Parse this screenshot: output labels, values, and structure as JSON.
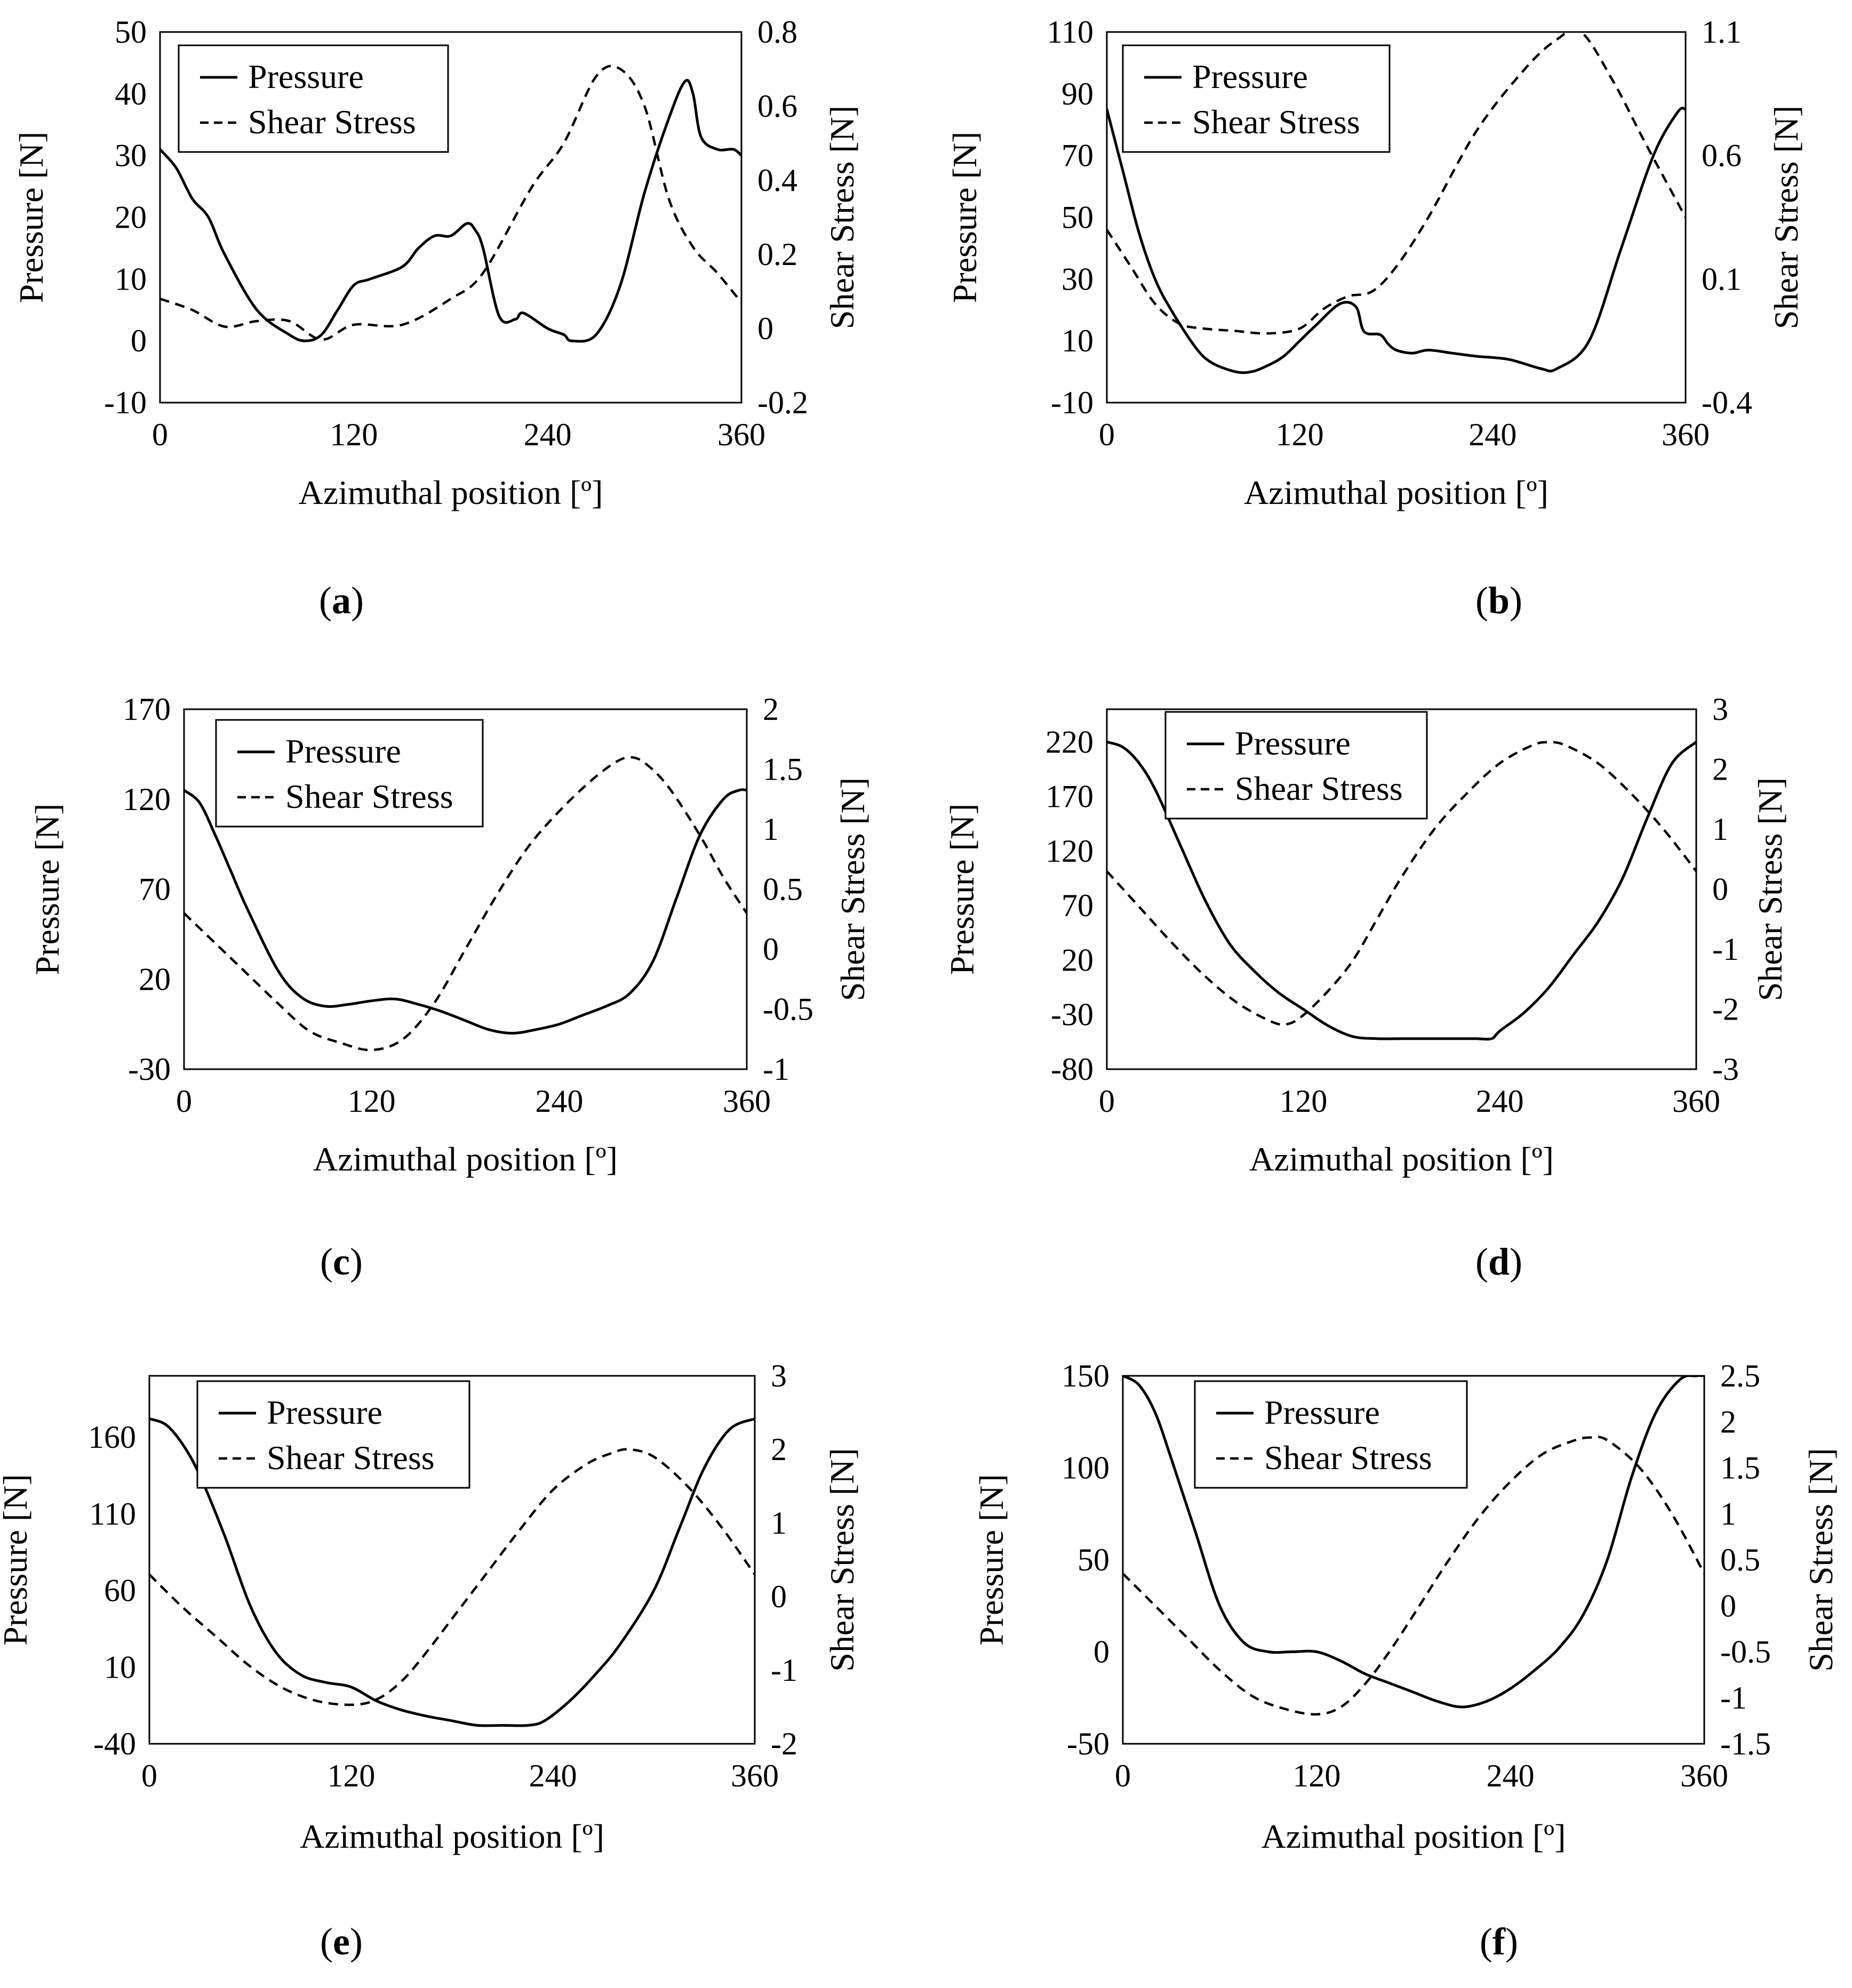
{
  "figure": {
    "legend_labels": {
      "pressure": "Pressure",
      "shear": "Shear Stress"
    },
    "series_colors": {
      "pressure": "#000000",
      "shear": "#000000"
    }
  },
  "chart_data": [
    {
      "type": "line",
      "caption_letter": "a",
      "xlabel": "Azimuthal position [º]",
      "ylabel": "Pressure [N]",
      "y2label": "Shear Stress [N]",
      "xlim": [
        0,
        360
      ],
      "xticks": [
        0,
        120,
        240,
        360
      ],
      "ylim": [
        -10,
        50
      ],
      "yticks": [
        -10,
        0,
        10,
        20,
        30,
        40,
        50
      ],
      "y2lim": [
        -0.2,
        0.8
      ],
      "y2ticks": [
        -0.2,
        0,
        0.2,
        0.4,
        0.6,
        0.8
      ],
      "legend": "top-left",
      "series": [
        {
          "name": "Pressure",
          "axis": "left",
          "style": "solid",
          "x": [
            0,
            10,
            20,
            30,
            40,
            60,
            80,
            90,
            100,
            110,
            120,
            130,
            150,
            160,
            170,
            180,
            190,
            195,
            200,
            210,
            220,
            225,
            240,
            250,
            255,
            270,
            285,
            300,
            315,
            325,
            330,
            335,
            345,
            355,
            360
          ],
          "y": [
            31,
            28,
            23,
            20,
            14,
            5,
            1,
            0,
            1,
            5,
            9,
            10,
            12,
            15,
            17,
            17,
            19,
            18,
            15,
            4,
            3.5,
            4.5,
            2,
            1,
            0,
            1,
            9,
            24,
            36,
            42,
            40,
            33,
            31,
            31,
            30
          ]
        },
        {
          "name": "Shear Stress",
          "axis": "right",
          "style": "dashed",
          "x": [
            0,
            20,
            40,
            60,
            80,
            100,
            120,
            150,
            180,
            200,
            230,
            250,
            270,
            285,
            300,
            315,
            330,
            345,
            360
          ],
          "y": [
            0.08,
            0.05,
            0.005,
            0.02,
            0.02,
            -0.03,
            0.01,
            0.01,
            0.08,
            0.15,
            0.38,
            0.5,
            0.68,
            0.7,
            0.6,
            0.35,
            0.22,
            0.15,
            0.07
          ]
        }
      ]
    },
    {
      "type": "line",
      "caption_letter": "b",
      "xlabel": "Azimuthal position [º]",
      "ylabel": "Pressure [N]",
      "y2label": "Shear Stress [N]",
      "xlim": [
        0,
        360
      ],
      "xticks": [
        0,
        120,
        240,
        360
      ],
      "ylim": [
        -10,
        110
      ],
      "yticks": [
        -10,
        10,
        30,
        50,
        70,
        90,
        110
      ],
      "y2lim": [
        -0.4,
        1.1
      ],
      "y2ticks": [
        -0.4,
        0.1,
        0.6,
        1.1
      ],
      "legend": "top-left",
      "series": [
        {
          "name": "Pressure",
          "axis": "left",
          "style": "solid",
          "x": [
            0,
            10,
            20,
            30,
            40,
            55,
            65,
            80,
            90,
            100,
            110,
            120,
            130,
            145,
            155,
            160,
            170,
            175,
            180,
            190,
            200,
            215,
            230,
            250,
            270,
            280,
            300,
            320,
            340,
            355,
            360
          ],
          "y": [
            85,
            65,
            45,
            30,
            20,
            8,
            3,
            0,
            0,
            2,
            5,
            10,
            15,
            22,
            21,
            13,
            12,
            9,
            7,
            6,
            7,
            6,
            5,
            4,
            1,
            1,
            10,
            40,
            70,
            84,
            85
          ]
        },
        {
          "name": "Shear Stress",
          "axis": "right",
          "style": "dashed",
          "x": [
            0,
            15,
            30,
            45,
            60,
            80,
            100,
            120,
            135,
            150,
            165,
            180,
            200,
            230,
            260,
            280,
            295,
            315,
            335,
            360
          ],
          "y": [
            0.3,
            0.15,
            0.0,
            -0.08,
            -0.1,
            -0.11,
            -0.12,
            -0.1,
            -0.02,
            0.03,
            0.05,
            0.15,
            0.35,
            0.7,
            0.95,
            1.07,
            1.1,
            0.9,
            0.65,
            0.35
          ]
        }
      ]
    },
    {
      "type": "line",
      "caption_letter": "c",
      "xlabel": "Azimuthal position [º]",
      "ylabel": "Pressure [N]",
      "y2label": "Shear Stress [N]",
      "xlim": [
        0,
        360
      ],
      "xticks": [
        0,
        120,
        240,
        360
      ],
      "ylim": [
        -30,
        170
      ],
      "yticks": [
        -30,
        20,
        70,
        120,
        170
      ],
      "y2lim": [
        -1,
        2
      ],
      "y2ticks": [
        -1,
        -0.5,
        0,
        0.5,
        1,
        1.5,
        2
      ],
      "legend": "top-left",
      "series": [
        {
          "name": "Pressure",
          "axis": "left",
          "style": "solid",
          "x": [
            0,
            10,
            20,
            30,
            40,
            60,
            75,
            90,
            105,
            120,
            135,
            150,
            165,
            180,
            195,
            210,
            225,
            240,
            255,
            270,
            285,
            300,
            315,
            330,
            345,
            355,
            360
          ],
          "y": [
            125,
            118,
            100,
            80,
            60,
            25,
            10,
            5,
            6,
            8,
            9,
            6,
            2,
            -3,
            -8,
            -10,
            -8,
            -5,
            0,
            5,
            12,
            30,
            65,
            100,
            120,
            125,
            125
          ]
        },
        {
          "name": "Shear Stress",
          "axis": "right",
          "style": "dashed",
          "x": [
            0,
            20,
            40,
            60,
            80,
            100,
            120,
            140,
            160,
            180,
            200,
            220,
            240,
            260,
            275,
            285,
            295,
            310,
            330,
            345,
            360
          ],
          "y": [
            0.3,
            0.05,
            -0.2,
            -0.45,
            -0.68,
            -0.78,
            -0.84,
            -0.75,
            -0.45,
            0,
            0.45,
            0.85,
            1.15,
            1.4,
            1.55,
            1.6,
            1.55,
            1.35,
            0.95,
            0.6,
            0.3
          ]
        }
      ]
    },
    {
      "type": "line",
      "caption_letter": "d",
      "xlabel": "Azimuthal position [º]",
      "ylabel": "Pressure [N]",
      "y2label": "Shear Stress [N]",
      "xlim": [
        0,
        360
      ],
      "xticks": [
        0,
        120,
        240,
        360
      ],
      "ylim": [
        -80,
        250
      ],
      "yticks": [
        -80,
        -30,
        20,
        70,
        120,
        170,
        220
      ],
      "y2lim": [
        -3,
        3
      ],
      "y2ticks": [
        -3,
        -2,
        -1,
        0,
        1,
        2,
        3
      ],
      "legend": "top-left",
      "series": [
        {
          "name": "Pressure",
          "axis": "left",
          "style": "solid",
          "x": [
            0,
            10,
            20,
            30,
            45,
            60,
            75,
            90,
            105,
            120,
            135,
            150,
            165,
            180,
            195,
            210,
            225,
            235,
            240,
            255,
            270,
            285,
            300,
            315,
            330,
            345,
            360
          ],
          "y": [
            220,
            215,
            200,
            175,
            125,
            75,
            35,
            10,
            -10,
            -25,
            -40,
            -50,
            -52,
            -52,
            -52,
            -52,
            -52,
            -52,
            -45,
            -28,
            -5,
            25,
            55,
            95,
            150,
            200,
            220
          ]
        },
        {
          "name": "Shear Stress",
          "axis": "right",
          "style": "dashed",
          "x": [
            0,
            20,
            40,
            60,
            80,
            100,
            110,
            120,
            135,
            150,
            165,
            180,
            200,
            220,
            240,
            260,
            270,
            280,
            300,
            320,
            340,
            360
          ],
          "y": [
            0.3,
            -0.3,
            -0.9,
            -1.45,
            -1.9,
            -2.2,
            -2.25,
            -2.1,
            -1.7,
            -1.2,
            -0.5,
            0.2,
            1.0,
            1.6,
            2.1,
            2.4,
            2.45,
            2.4,
            2.1,
            1.6,
            1.0,
            0.3
          ]
        }
      ]
    },
    {
      "type": "line",
      "caption_letter": "e",
      "xlabel": "Azimuthal position [º]",
      "ylabel": "Pressure [N]",
      "y2label": "Shear Stress [N]",
      "xlim": [
        0,
        360
      ],
      "xticks": [
        0,
        120,
        240,
        360
      ],
      "ylim": [
        -40,
        200
      ],
      "yticks": [
        -40,
        10,
        60,
        110,
        160
      ],
      "y2lim": [
        -2,
        3
      ],
      "y2ticks": [
        -2,
        -1,
        0,
        1,
        2,
        3
      ],
      "legend": "top-left",
      "series": [
        {
          "name": "Pressure",
          "axis": "left",
          "style": "solid",
          "x": [
            0,
            10,
            20,
            30,
            45,
            60,
            75,
            90,
            105,
            120,
            135,
            150,
            165,
            180,
            195,
            210,
            225,
            235,
            250,
            265,
            280,
            300,
            315,
            330,
            345,
            360
          ],
          "y": [
            172,
            168,
            155,
            135,
            95,
            50,
            20,
            5,
            0,
            -3,
            -12,
            -18,
            -22,
            -25,
            -28,
            -28,
            -28,
            -25,
            -12,
            5,
            25,
            60,
            100,
            140,
            165,
            172
          ]
        },
        {
          "name": "Shear Stress",
          "axis": "right",
          "style": "dashed",
          "x": [
            0,
            20,
            40,
            60,
            80,
            100,
            120,
            135,
            150,
            165,
            180,
            200,
            220,
            240,
            260,
            275,
            285,
            300,
            320,
            340,
            360
          ],
          "y": [
            0.3,
            -0.15,
            -0.55,
            -0.95,
            -1.25,
            -1.42,
            -1.47,
            -1.4,
            -1.15,
            -0.75,
            -0.3,
            0.3,
            0.9,
            1.45,
            1.8,
            1.95,
            2.0,
            1.9,
            1.5,
            0.95,
            0.3
          ]
        }
      ]
    },
    {
      "type": "line",
      "caption_letter": "f",
      "xlabel": "Azimuthal position [º]",
      "ylabel": "Pressure [N]",
      "y2label": "Shear Stress [N]",
      "xlim": [
        0,
        360
      ],
      "xticks": [
        0,
        120,
        240,
        360
      ],
      "ylim": [
        -50,
        150
      ],
      "yticks": [
        -50,
        0,
        50,
        100,
        150
      ],
      "y2lim": [
        -1.5,
        2.5
      ],
      "y2ticks": [
        -1.5,
        -1,
        -0.5,
        0,
        0.5,
        1,
        1.5,
        2,
        2.5
      ],
      "legend": "top-left",
      "series": [
        {
          "name": "Pressure",
          "axis": "left",
          "style": "solid",
          "x": [
            0,
            10,
            20,
            30,
            45,
            60,
            75,
            90,
            105,
            120,
            135,
            150,
            165,
            180,
            195,
            210,
            225,
            240,
            255,
            270,
            285,
            300,
            315,
            330,
            345,
            355,
            360
          ],
          "y": [
            150,
            145,
            130,
            105,
            65,
            25,
            5,
            0,
            0,
            0,
            -5,
            -12,
            -17,
            -22,
            -27,
            -30,
            -27,
            -20,
            -10,
            2,
            20,
            50,
            95,
            130,
            148,
            150,
            150
          ]
        },
        {
          "name": "Shear Stress",
          "axis": "right",
          "style": "dashed",
          "x": [
            0,
            20,
            40,
            60,
            80,
            100,
            120,
            135,
            150,
            165,
            180,
            200,
            220,
            240,
            260,
            280,
            290,
            300,
            320,
            340,
            360
          ],
          "y": [
            0.35,
            0.0,
            -0.35,
            -0.7,
            -0.98,
            -1.12,
            -1.18,
            -1.1,
            -0.85,
            -0.5,
            -0.1,
            0.45,
            0.95,
            1.35,
            1.65,
            1.8,
            1.83,
            1.8,
            1.5,
            1.0,
            0.35
          ]
        }
      ]
    }
  ]
}
